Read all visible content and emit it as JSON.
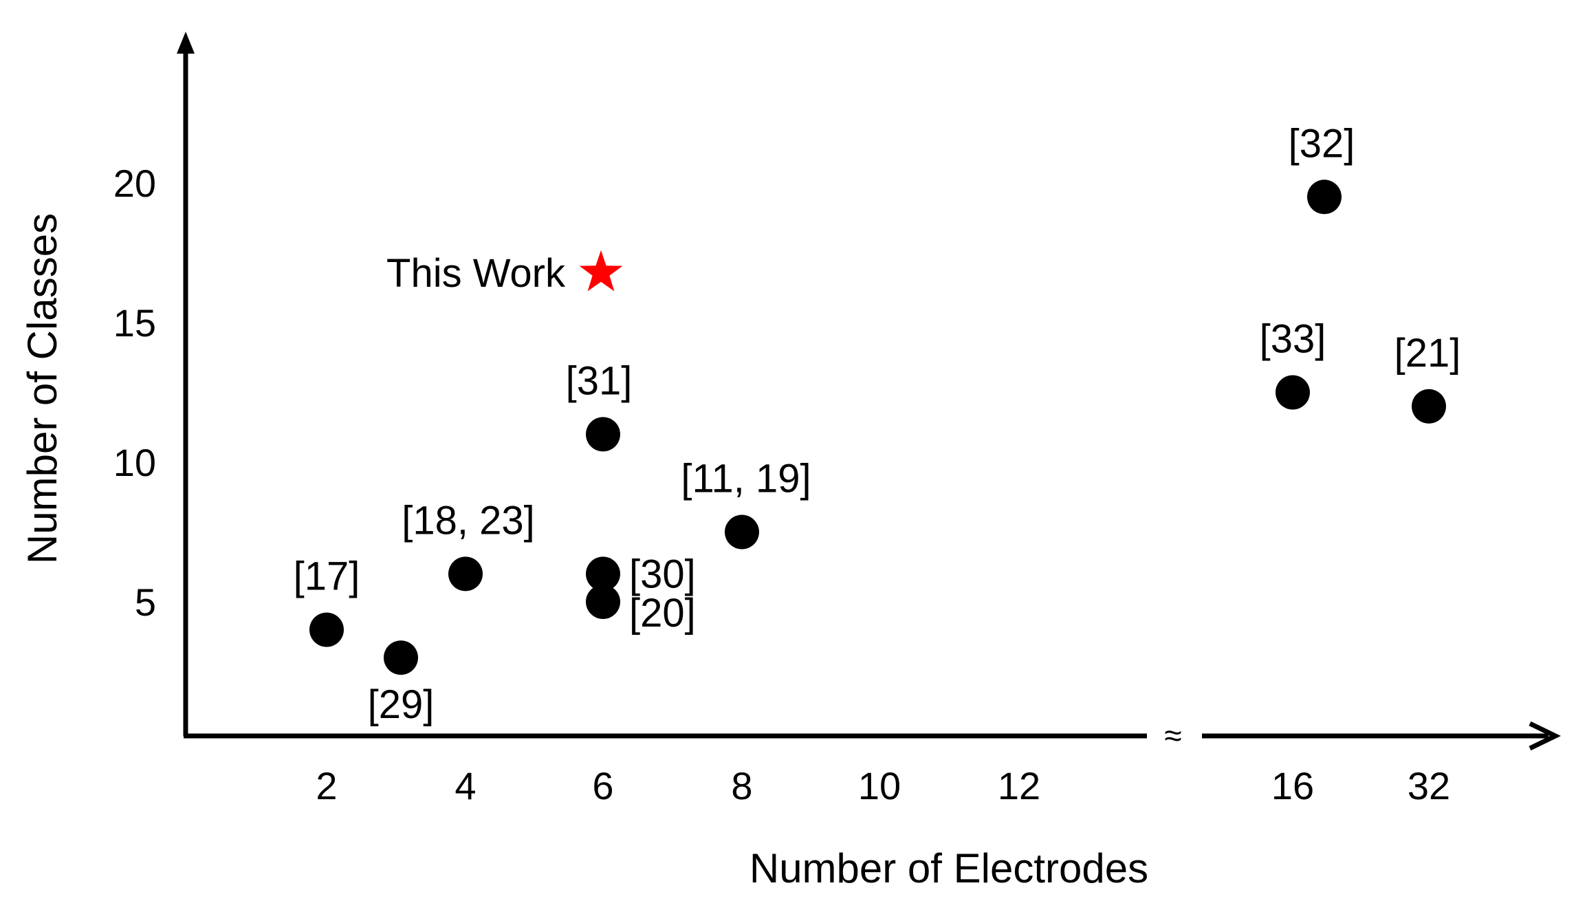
{
  "chart_data": {
    "type": "scatter",
    "xlabel": "Number of Electrodes",
    "ylabel": "Number of Classes",
    "x_ticks": [
      "2",
      "4",
      "6",
      "8",
      "10",
      "12",
      "16",
      "32"
    ],
    "y_ticks": [
      5,
      10,
      15,
      20
    ],
    "axis_break": "≈",
    "grid": false,
    "legend": "none",
    "marker_color": "#000000",
    "highlight_color": "#ff0000",
    "points": [
      {
        "label": "[17]",
        "x": "2",
        "y": 4
      },
      {
        "label": "[29]",
        "x": "3",
        "y": 3
      },
      {
        "label": "[18, 23]",
        "x": "4",
        "y": 6
      },
      {
        "label": "[31]",
        "x": "6",
        "y": 11
      },
      {
        "label": "[30]",
        "x": "6",
        "y": 6
      },
      {
        "label": "[20]",
        "x": "6",
        "y": 5
      },
      {
        "label": "[11, 19]",
        "x": "8",
        "y": 7.5
      },
      {
        "label": "[32]",
        "x": "16",
        "y": 19.5
      },
      {
        "label": "[33]",
        "x": "16",
        "y": 12.5
      },
      {
        "label": "[21]",
        "x": "32",
        "y": 12
      }
    ],
    "highlight": {
      "label": "This Work",
      "x": "6",
      "y": 17,
      "marker": "star"
    }
  }
}
